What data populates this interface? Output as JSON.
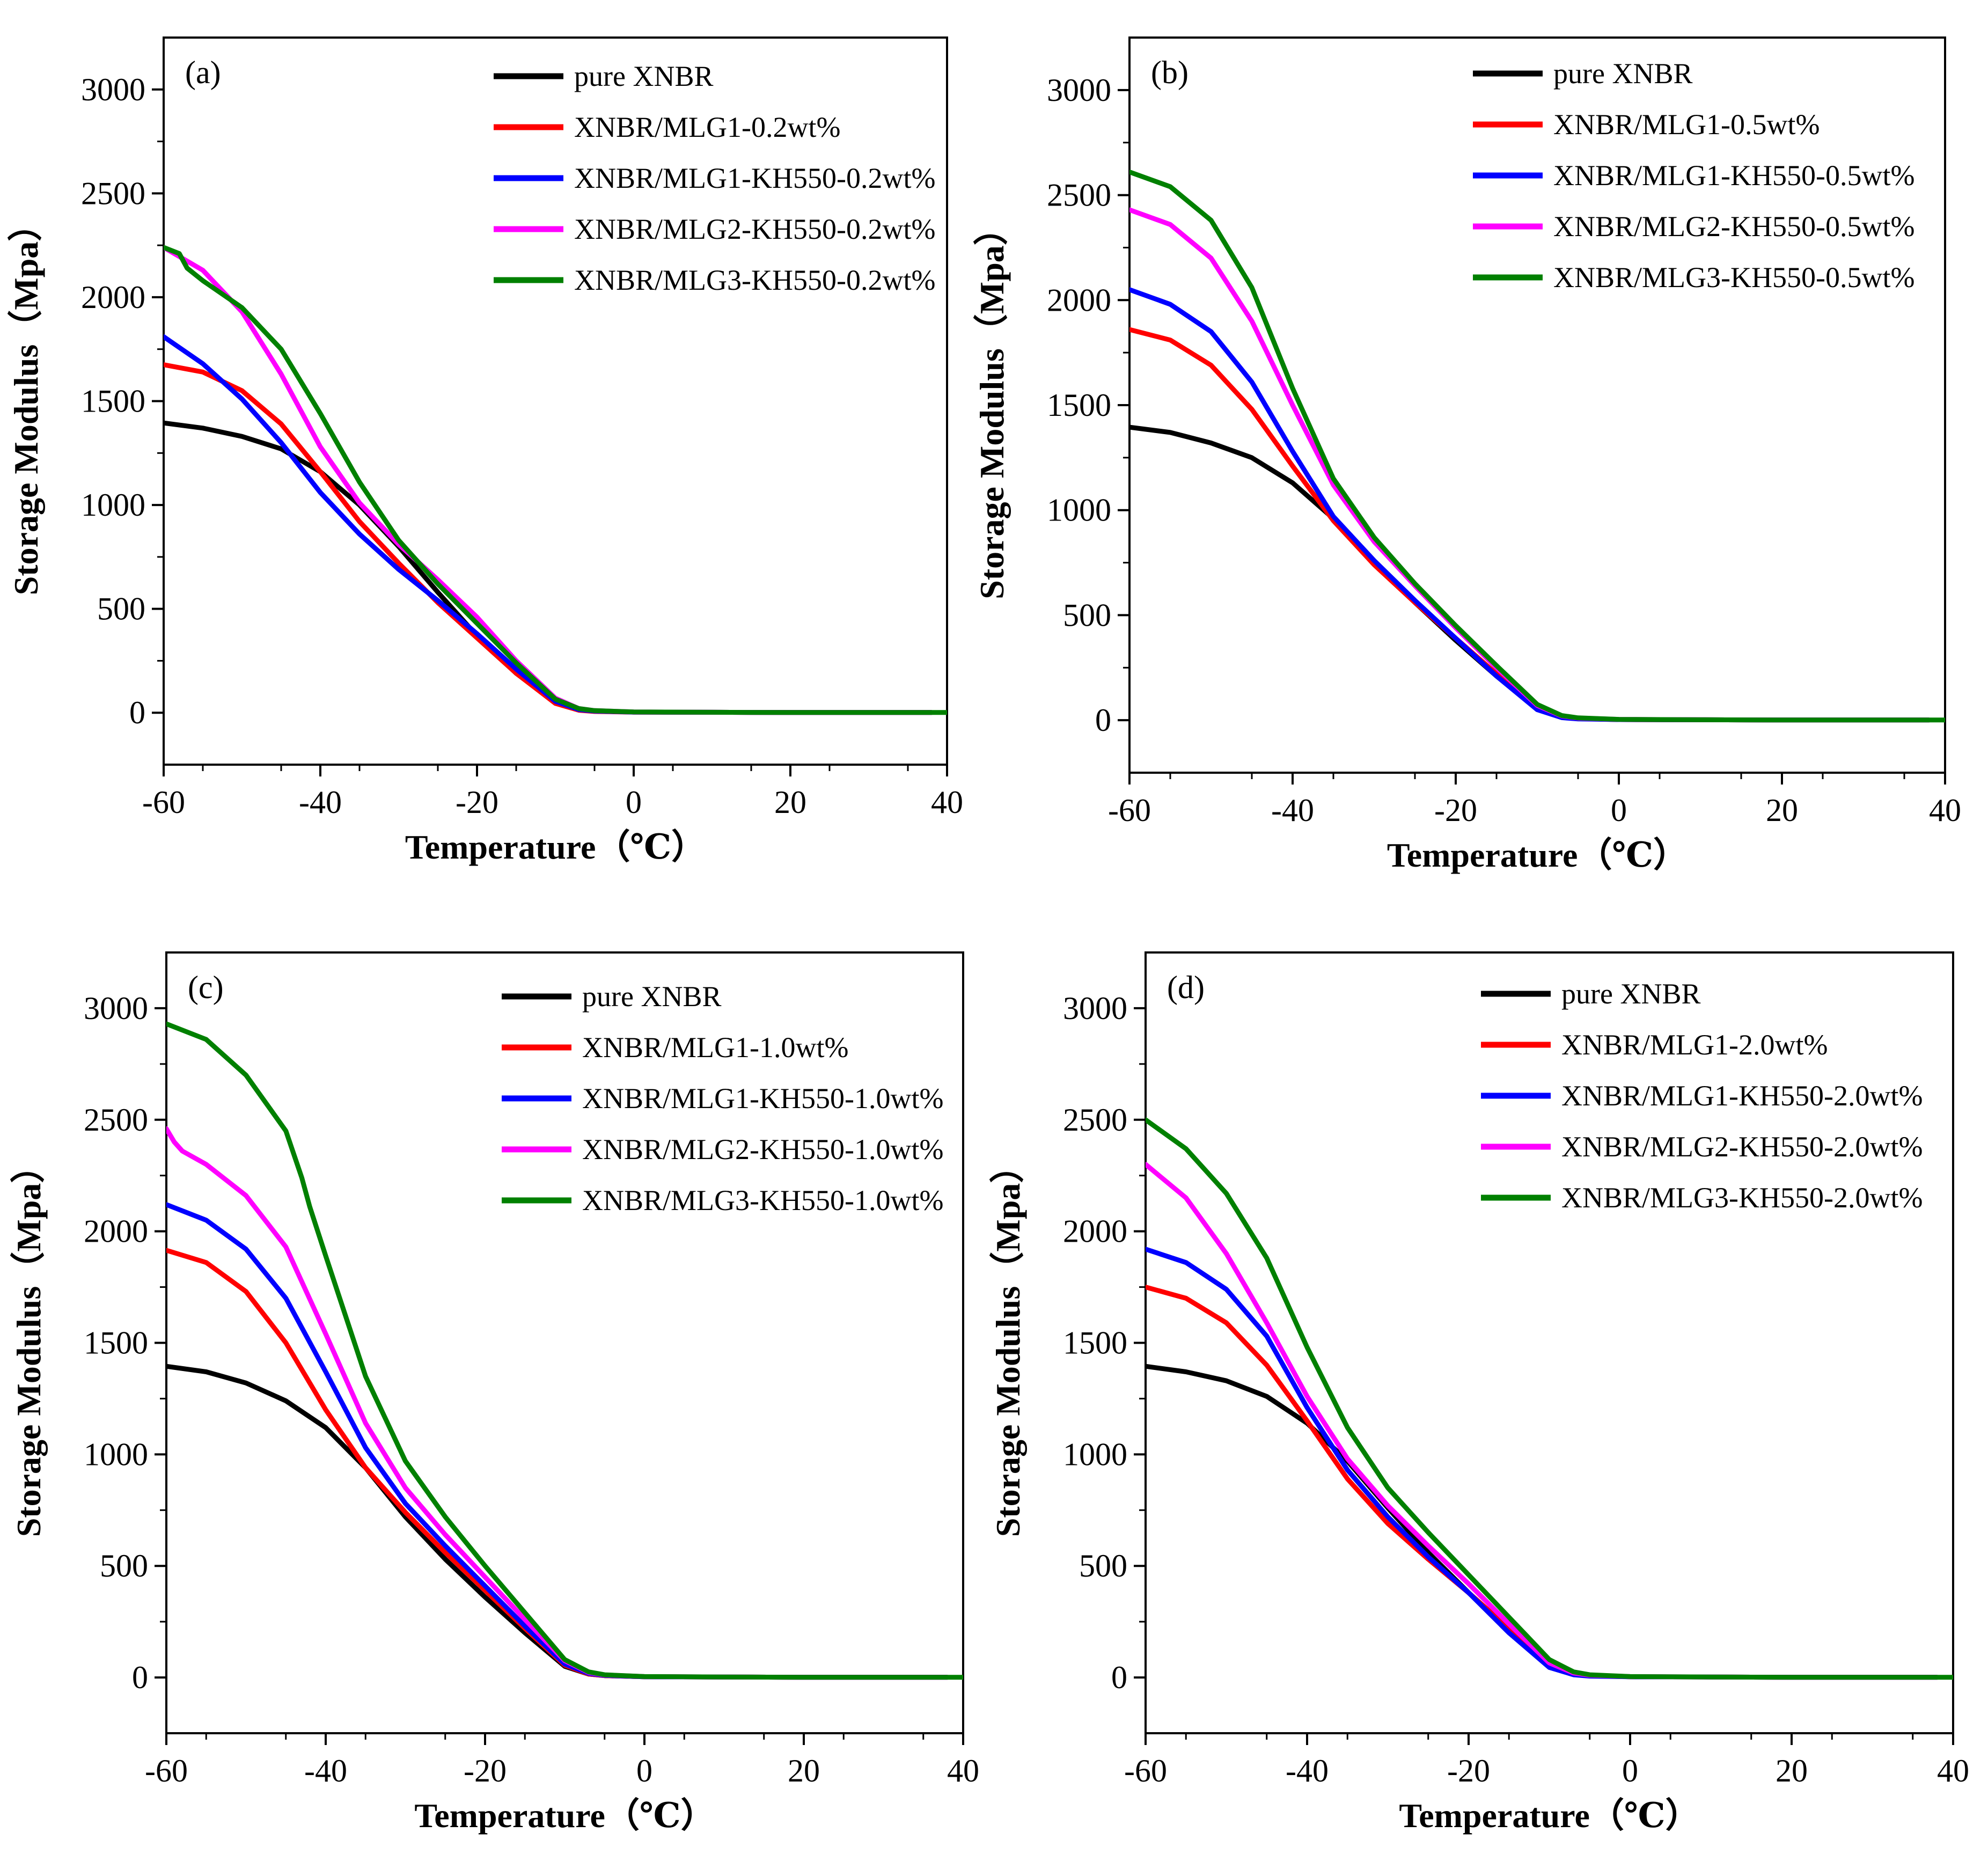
{
  "figure": {
    "panels": [
      "panel_a",
      "panel_b",
      "panel_c",
      "panel_d"
    ]
  },
  "colors": {
    "pure": "#000000",
    "mlg1": "#ff0000",
    "mlg1_kh": "#0000ff",
    "mlg2_kh": "#ff00ff",
    "mlg3_kh": "#008000"
  },
  "chart_data": [
    {
      "id": "panel_a",
      "type": "line",
      "panel_label": "(a)",
      "xlabel": "Temperature（℃）",
      "ylabel": "Storage Modulus（Mpa）",
      "xlim": [
        -60,
        40
      ],
      "ylim": [
        -250,
        3250
      ],
      "xticks": [
        -60,
        -40,
        -20,
        0,
        20,
        40
      ],
      "yticks": [
        0,
        500,
        1000,
        1500,
        2000,
        2500,
        3000
      ],
      "legend_position": "top-right",
      "grid": false,
      "series": [
        {
          "name": "pure XNBR",
          "color": "#000000",
          "x": [
            -60,
            -55,
            -50,
            -45,
            -40,
            -35,
            -30,
            -25,
            -20,
            -15,
            -10,
            -7,
            -5,
            0,
            10,
            20,
            30,
            38
          ],
          "y": [
            1395,
            1370,
            1330,
            1270,
            1160,
            1000,
            800,
            580,
            370,
            190,
            50,
            15,
            8,
            3,
            2,
            1,
            1,
            1
          ]
        },
        {
          "name": "XNBR/MLG1-0.2wt%",
          "color": "#ff0000",
          "x": [
            -60,
            -55,
            -50,
            -45,
            -40,
            -35,
            -30,
            -25,
            -20,
            -15,
            -10,
            -7,
            -5,
            0,
            10,
            20,
            30,
            38
          ],
          "y": [
            1675,
            1640,
            1550,
            1390,
            1160,
            920,
            720,
            530,
            360,
            190,
            45,
            12,
            6,
            3,
            2,
            1,
            1,
            1
          ]
        },
        {
          "name": "XNBR/MLG1-KH550-0.2wt%",
          "color": "#0000ff",
          "x": [
            -60,
            -55,
            -50,
            -45,
            -40,
            -35,
            -30,
            -25,
            -20,
            -15,
            -10,
            -7,
            -5,
            0,
            10,
            20,
            30,
            38
          ],
          "y": [
            1810,
            1680,
            1510,
            1300,
            1060,
            860,
            690,
            540,
            380,
            210,
            55,
            15,
            8,
            3,
            2,
            1,
            1,
            1
          ]
        },
        {
          "name": "XNBR/MLG2-KH550-0.2wt%",
          "color": "#ff00ff",
          "x": [
            -60,
            -55,
            -50,
            -45,
            -40,
            -35,
            -30,
            -25,
            -20,
            -15,
            -10,
            -7,
            -5,
            0,
            10,
            20,
            30,
            38
          ],
          "y": [
            2240,
            2130,
            1930,
            1630,
            1280,
            1010,
            810,
            640,
            460,
            250,
            70,
            20,
            10,
            4,
            2,
            1,
            1,
            1
          ]
        },
        {
          "name": "XNBR/MLG3-KH550-0.2wt%",
          "color": "#008000",
          "x": [
            -60,
            -58,
            -57,
            -55,
            -50,
            -45,
            -40,
            -35,
            -30,
            -25,
            -20,
            -15,
            -10,
            -7,
            -5,
            0,
            10,
            20,
            30,
            40
          ],
          "y": [
            2240,
            2210,
            2140,
            2080,
            1950,
            1750,
            1440,
            1110,
            830,
            620,
            430,
            240,
            65,
            20,
            10,
            4,
            2,
            1,
            1,
            1
          ]
        }
      ]
    },
    {
      "id": "panel_b",
      "type": "line",
      "panel_label": "(b)",
      "xlabel": "Temperature（℃）",
      "ylabel": "Storage Modulus（Mpa）",
      "xlim": [
        -60,
        40
      ],
      "ylim": [
        -250,
        3250
      ],
      "xticks": [
        -60,
        -40,
        -20,
        0,
        20,
        40
      ],
      "yticks": [
        0,
        500,
        1000,
        1500,
        2000,
        2500,
        3000
      ],
      "legend_position": "top-right",
      "grid": false,
      "series": [
        {
          "name": "pure XNBR",
          "color": "#000000",
          "x": [
            -60,
            -55,
            -50,
            -45,
            -40,
            -35,
            -30,
            -25,
            -20,
            -15,
            -10,
            -7,
            -5,
            0,
            10,
            20,
            30,
            38
          ],
          "y": [
            1395,
            1370,
            1320,
            1250,
            1130,
            960,
            750,
            560,
            380,
            210,
            55,
            15,
            8,
            3,
            2,
            1,
            1,
            1
          ]
        },
        {
          "name": "XNBR/MLG1-0.5wt%",
          "color": "#ff0000",
          "x": [
            -60,
            -55,
            -50,
            -45,
            -40,
            -35,
            -30,
            -25,
            -20,
            -15,
            -10,
            -7,
            -5,
            0,
            10,
            20,
            30,
            38
          ],
          "y": [
            1860,
            1810,
            1690,
            1480,
            1210,
            950,
            740,
            560,
            390,
            220,
            55,
            15,
            8,
            3,
            2,
            1,
            1,
            1
          ]
        },
        {
          "name": "XNBR/MLG1-KH550-0.5wt%",
          "color": "#0000ff",
          "x": [
            -60,
            -55,
            -50,
            -45,
            -40,
            -35,
            -30,
            -25,
            -20,
            -15,
            -10,
            -7,
            -5,
            0,
            10,
            20,
            30,
            38
          ],
          "y": [
            2050,
            1980,
            1850,
            1610,
            1280,
            970,
            760,
            570,
            390,
            210,
            50,
            12,
            6,
            3,
            2,
            1,
            1,
            1
          ]
        },
        {
          "name": "XNBR/MLG2-KH550-0.5wt%",
          "color": "#ff00ff",
          "x": [
            -60,
            -55,
            -50,
            -45,
            -40,
            -35,
            -30,
            -25,
            -20,
            -15,
            -10,
            -7,
            -5,
            0,
            10,
            20,
            30,
            38
          ],
          "y": [
            2430,
            2360,
            2200,
            1900,
            1500,
            1120,
            850,
            640,
            440,
            250,
            70,
            20,
            10,
            4,
            2,
            1,
            1,
            1
          ]
        },
        {
          "name": "XNBR/MLG3-KH550-0.5wt%",
          "color": "#008000",
          "x": [
            -60,
            -55,
            -50,
            -45,
            -40,
            -35,
            -30,
            -25,
            -20,
            -15,
            -10,
            -7,
            -5,
            0,
            10,
            20,
            30,
            40
          ],
          "y": [
            2610,
            2540,
            2380,
            2060,
            1580,
            1150,
            870,
            650,
            450,
            260,
            75,
            22,
            11,
            4,
            2,
            1,
            1,
            1
          ]
        }
      ]
    },
    {
      "id": "panel_c",
      "type": "line",
      "panel_label": "(c)",
      "xlabel": "Temperature（℃）",
      "ylabel": "Storage Modulus（Mpa）",
      "xlim": [
        -60,
        40
      ],
      "ylim": [
        -250,
        3250
      ],
      "xticks": [
        -60,
        -40,
        -20,
        0,
        20,
        40
      ],
      "yticks": [
        0,
        500,
        1000,
        1500,
        2000,
        2500,
        3000
      ],
      "legend_position": "top-right",
      "grid": false,
      "series": [
        {
          "name": "pure XNBR",
          "color": "#000000",
          "x": [
            -60,
            -55,
            -50,
            -45,
            -40,
            -35,
            -30,
            -25,
            -20,
            -15,
            -10,
            -7,
            -5,
            0,
            10,
            20,
            30,
            38
          ],
          "y": [
            1395,
            1370,
            1320,
            1240,
            1120,
            940,
            720,
            530,
            360,
            200,
            50,
            15,
            8,
            3,
            2,
            1,
            1,
            1
          ]
        },
        {
          "name": "XNBR/MLG1-1.0wt%",
          "color": "#ff0000",
          "x": [
            -60,
            -55,
            -50,
            -45,
            -40,
            -35,
            -30,
            -25,
            -20,
            -15,
            -10,
            -7,
            -5,
            0,
            10,
            20,
            30,
            38
          ],
          "y": [
            1915,
            1860,
            1730,
            1500,
            1200,
            940,
            740,
            560,
            390,
            220,
            55,
            15,
            8,
            3,
            2,
            1,
            1,
            1
          ]
        },
        {
          "name": "XNBR/MLG1-KH550-1.0wt%",
          "color": "#0000ff",
          "x": [
            -60,
            -55,
            -50,
            -45,
            -40,
            -35,
            -30,
            -25,
            -20,
            -15,
            -10,
            -7,
            -5,
            0,
            10,
            20,
            30,
            38
          ],
          "y": [
            2120,
            2050,
            1920,
            1700,
            1370,
            1030,
            780,
            590,
            410,
            230,
            60,
            18,
            9,
            3,
            2,
            1,
            1,
            1
          ]
        },
        {
          "name": "XNBR/MLG2-KH550-1.0wt%",
          "color": "#ff00ff",
          "x": [
            -60,
            -59,
            -58,
            -55,
            -50,
            -45,
            -40,
            -35,
            -30,
            -25,
            -20,
            -15,
            -10,
            -7,
            -5,
            0,
            10,
            20,
            30,
            38
          ],
          "y": [
            2460,
            2400,
            2360,
            2300,
            2160,
            1930,
            1540,
            1140,
            850,
            640,
            450,
            260,
            75,
            22,
            11,
            4,
            2,
            1,
            1,
            1
          ]
        },
        {
          "name": "XNBR/MLG3-KH550-1.0wt%",
          "color": "#008000",
          "x": [
            -60,
            -55,
            -50,
            -45,
            -43,
            -42,
            -40,
            -35,
            -30,
            -25,
            -20,
            -15,
            -10,
            -7,
            -5,
            0,
            10,
            20,
            30,
            40
          ],
          "y": [
            2930,
            2860,
            2700,
            2450,
            2240,
            2110,
            1890,
            1350,
            970,
            720,
            500,
            290,
            80,
            25,
            12,
            4,
            2,
            1,
            1,
            1
          ]
        }
      ]
    },
    {
      "id": "panel_d",
      "type": "line",
      "panel_label": "(d)",
      "xlabel": "Temperature（℃）",
      "ylabel": "Storage Modulus（Mpa）",
      "xlim": [
        -60,
        40
      ],
      "ylim": [
        -250,
        3250
      ],
      "xticks": [
        -60,
        -40,
        -20,
        0,
        20,
        40
      ],
      "yticks": [
        0,
        500,
        1000,
        1500,
        2000,
        2500,
        3000
      ],
      "legend_position": "top-right",
      "grid": false,
      "series": [
        {
          "name": "pure XNBR",
          "color": "#000000",
          "x": [
            -60,
            -55,
            -50,
            -45,
            -40,
            -35,
            -30,
            -25,
            -20,
            -15,
            -10,
            -7,
            -5,
            0,
            10,
            20,
            30,
            38
          ],
          "y": [
            1395,
            1370,
            1330,
            1260,
            1140,
            970,
            760,
            560,
            380,
            210,
            55,
            15,
            8,
            3,
            2,
            1,
            1,
            1
          ]
        },
        {
          "name": "XNBR/MLG1-2.0wt%",
          "color": "#ff0000",
          "x": [
            -60,
            -55,
            -50,
            -45,
            -40,
            -35,
            -30,
            -25,
            -20,
            -15,
            -10,
            -7,
            -5,
            0,
            10,
            20,
            30,
            38
          ],
          "y": [
            1750,
            1700,
            1590,
            1400,
            1150,
            890,
            690,
            530,
            380,
            220,
            60,
            18,
            9,
            3,
            2,
            1,
            1,
            1
          ]
        },
        {
          "name": "XNBR/MLG1-KH550-2.0wt%",
          "color": "#0000ff",
          "x": [
            -60,
            -55,
            -50,
            -45,
            -40,
            -35,
            -30,
            -25,
            -20,
            -15,
            -10,
            -7,
            -5,
            0,
            10,
            20,
            30,
            38
          ],
          "y": [
            1920,
            1860,
            1740,
            1530,
            1210,
            930,
            720,
            540,
            380,
            200,
            45,
            12,
            6,
            3,
            2,
            1,
            1,
            1
          ]
        },
        {
          "name": "XNBR/MLG2-KH550-2.0wt%",
          "color": "#ff00ff",
          "x": [
            -60,
            -55,
            -50,
            -45,
            -40,
            -35,
            -30,
            -25,
            -20,
            -15,
            -10,
            -7,
            -5,
            0,
            10,
            20,
            30,
            38
          ],
          "y": [
            2300,
            2150,
            1900,
            1590,
            1260,
            980,
            770,
            590,
            420,
            240,
            65,
            20,
            10,
            4,
            2,
            1,
            1,
            1
          ]
        },
        {
          "name": "XNBR/MLG3-KH550-2.0wt%",
          "color": "#008000",
          "x": [
            -60,
            -55,
            -50,
            -45,
            -40,
            -35,
            -30,
            -25,
            -20,
            -15,
            -10,
            -7,
            -5,
            0,
            10,
            20,
            30,
            40
          ],
          "y": [
            2500,
            2370,
            2170,
            1880,
            1480,
            1120,
            850,
            650,
            460,
            270,
            80,
            25,
            12,
            4,
            2,
            1,
            1,
            1
          ]
        }
      ]
    }
  ]
}
